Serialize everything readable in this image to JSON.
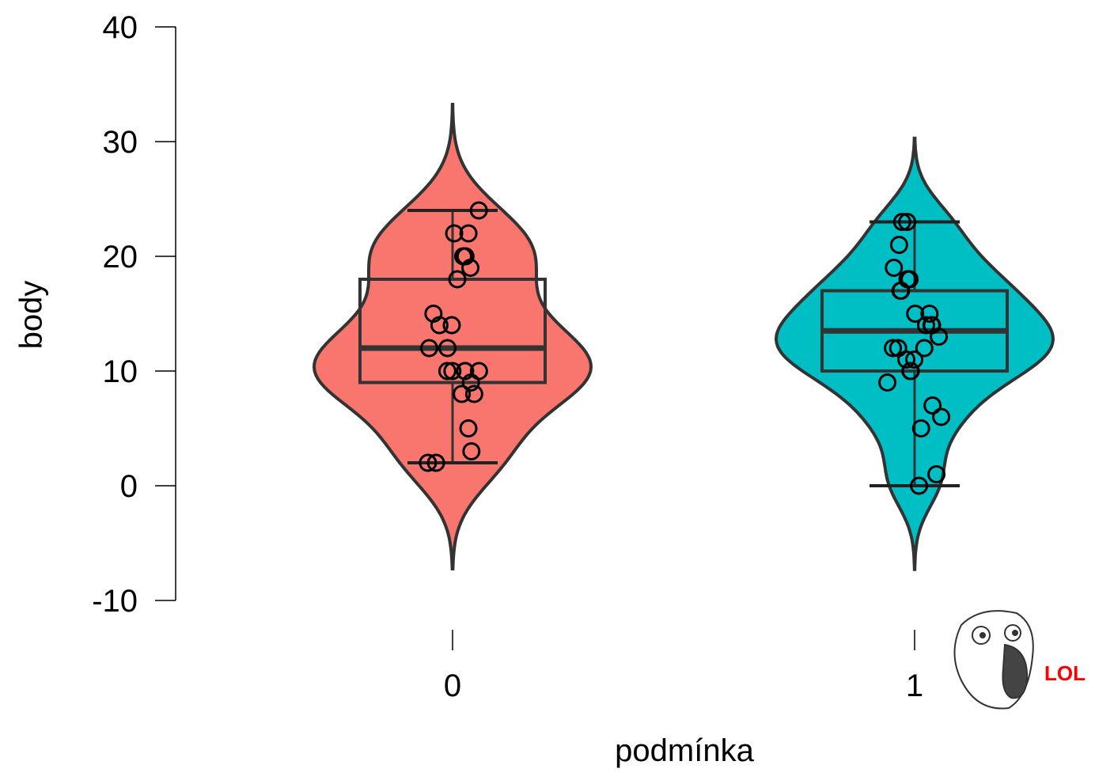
{
  "chart_data": {
    "type": "violin",
    "x_label": "podmínka",
    "y_label": "body",
    "categories": [
      "0",
      "1"
    ],
    "ylim": [
      -10,
      40
    ],
    "yticks": [
      -10,
      0,
      10,
      20,
      30,
      40
    ],
    "series": [
      {
        "color": "#f8766d",
        "box": {
          "whisker_low": 2,
          "q1": 9,
          "median": 12,
          "q3": 18,
          "whisker_high": 24
        },
        "values": [
          24,
          22,
          22,
          20,
          20,
          19,
          18,
          15,
          14,
          14,
          12,
          12,
          10,
          10,
          10,
          10,
          10,
          9,
          8,
          8,
          5,
          3,
          2,
          2
        ]
      },
      {
        "color": "#00bfc4",
        "box": {
          "whisker_low": 0,
          "q1": 10,
          "median": 13.5,
          "q3": 17,
          "whisker_high": 23
        },
        "values": [
          23,
          23,
          21,
          19,
          18,
          18,
          17,
          17,
          15,
          15,
          14,
          14,
          14,
          13,
          12,
          12,
          12,
          11,
          11,
          10,
          10,
          9,
          7,
          6,
          5,
          1,
          0
        ]
      }
    ],
    "annotation": "LOL"
  }
}
